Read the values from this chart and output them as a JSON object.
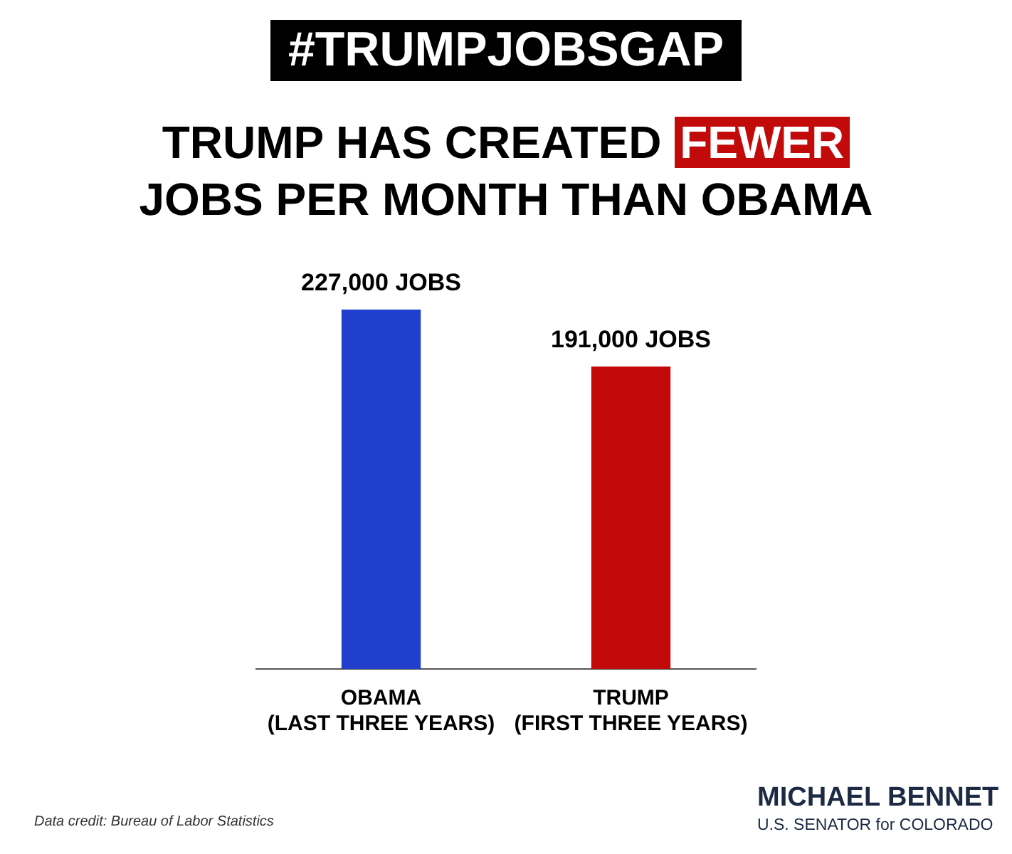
{
  "chart_data": {
    "type": "bar",
    "subtitle": "#TRUMPJOBSGAP",
    "title": "TRUMP HAS CREATED FEWER JOBS PER MONTH THAN OBAMA",
    "categories": [
      "OBAMA\n(LAST THREE YEARS)",
      "TRUMP\n(FIRST THREE YEARS)"
    ],
    "values": [
      227000,
      191000
    ],
    "value_labels": [
      "227,000 JOBS",
      "191,000 JOBS"
    ],
    "colors": [
      "#1f3fcc",
      "#c20a0a"
    ],
    "grid": false,
    "legend": false,
    "annotations": [
      "Data credit: Bureau of Labor Statistics",
      "MICHAEL BENNET",
      "U.S. SENATOR for COLORADO"
    ]
  }
}
